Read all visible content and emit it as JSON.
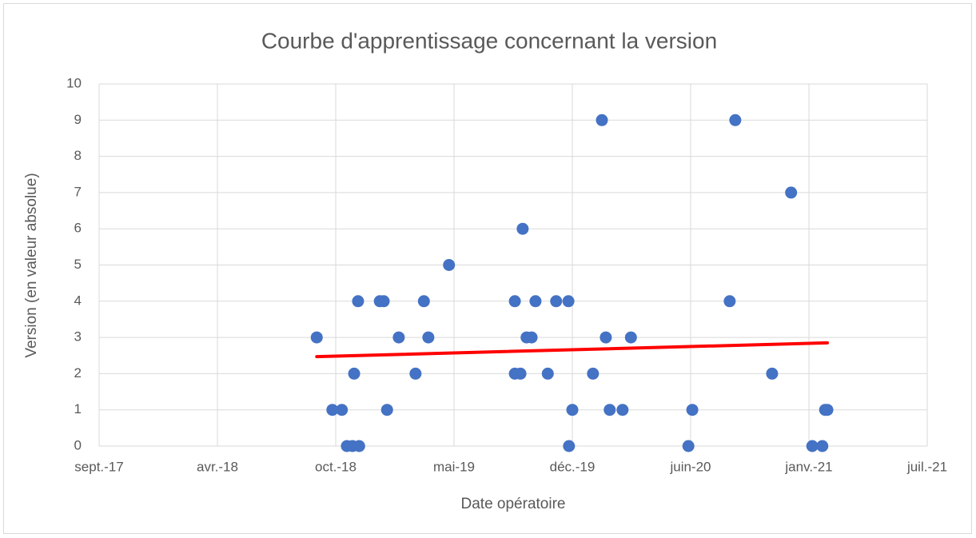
{
  "chart_data": {
    "type": "scatter",
    "title": "Courbe d'apprentissage concernant la version",
    "xlabel": "Date opératoire",
    "ylabel": "Version (en valeur absolue)",
    "x": [
      43369,
      43397,
      43414,
      43423,
      43433,
      43436,
      43443,
      43445,
      43482,
      43489,
      43495,
      43516,
      43546,
      43561,
      43569,
      43606,
      43724,
      43724,
      43734,
      43738,
      43745,
      43754,
      43761,
      43783,
      43798,
      43820,
      43821,
      43827,
      43864,
      43880,
      43887,
      43894,
      43917,
      43932,
      44035,
      44042,
      44109,
      44119,
      44185,
      44219,
      44257,
      44275,
      44280,
      44284
    ],
    "values": [
      3,
      1,
      1,
      0,
      0,
      2,
      4,
      0,
      4,
      4,
      1,
      3,
      2,
      4,
      3,
      5,
      4,
      2,
      2,
      6,
      3,
      3,
      4,
      2,
      4,
      4,
      0,
      1,
      2,
      9,
      3,
      1,
      1,
      3,
      0,
      1,
      4,
      9,
      2,
      7,
      0,
      0,
      1,
      1
    ],
    "color": "#4472c4",
    "trendline": {
      "x": [
        43369,
        44284
      ],
      "values": [
        2.47,
        2.85
      ],
      "color": "#ff0000"
    },
    "xlim": [
      42979,
      44463
    ],
    "xticks": [
      {
        "value": 42979,
        "label": "sept.-17"
      },
      {
        "value": 43191,
        "label": "avr.-18"
      },
      {
        "value": 43403,
        "label": "oct.-18"
      },
      {
        "value": 43615,
        "label": "mai-19"
      },
      {
        "value": 43827,
        "label": "déc.-19"
      },
      {
        "value": 44039,
        "label": "juin-20"
      },
      {
        "value": 44251,
        "label": "janv.-21"
      },
      {
        "value": 44463,
        "label": "juil.-21"
      }
    ],
    "ylim": [
      0,
      10
    ],
    "yticks": [
      0,
      1,
      2,
      3,
      4,
      5,
      6,
      7,
      8,
      9,
      10
    ],
    "grid": true
  }
}
